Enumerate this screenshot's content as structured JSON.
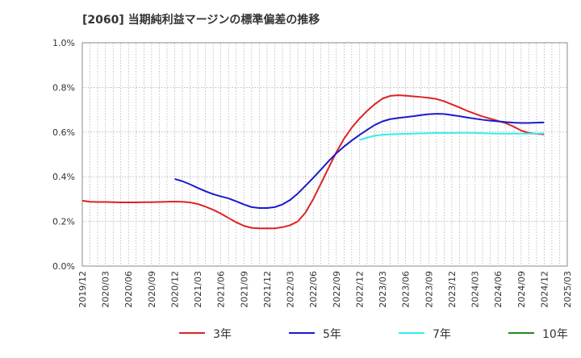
{
  "chart_data": {
    "type": "line",
    "title": "[2060]  当期純利益マージンの標準偏差の推移",
    "xlabel": "",
    "ylabel": "",
    "ylim": [
      0,
      1.0
    ],
    "y_ticks": [
      "0.0%",
      "0.2%",
      "0.4%",
      "0.6%",
      "0.8%",
      "1.0%"
    ],
    "y_tick_values": [
      0,
      0.2,
      0.4,
      0.6,
      0.8,
      1.0
    ],
    "x_start": "2019/12",
    "x_tick_labels": [
      "2019/12",
      "2020/03",
      "2020/06",
      "2020/09",
      "2020/12",
      "2021/03",
      "2021/06",
      "2021/09",
      "2021/12",
      "2022/03",
      "2022/06",
      "2022/09",
      "2022/12",
      "2023/03",
      "2023/06",
      "2023/09",
      "2023/12",
      "2024/03",
      "2024/06",
      "2024/09",
      "2024/12",
      "2025/03"
    ],
    "grid": true,
    "legend_position": "bottom",
    "series": [
      {
        "name": "3年",
        "color": "#dd2222",
        "x": [
          "2019/12",
          "2020/01",
          "2020/02",
          "2020/03",
          "2020/04",
          "2020/05",
          "2020/06",
          "2020/07",
          "2020/08",
          "2020/09",
          "2020/10",
          "2020/11",
          "2020/12",
          "2021/01",
          "2021/02",
          "2021/03",
          "2021/04",
          "2021/05",
          "2021/06",
          "2021/07",
          "2021/08",
          "2021/09",
          "2021/10",
          "2021/11",
          "2021/12",
          "2022/01",
          "2022/02",
          "2022/03",
          "2022/04",
          "2022/05",
          "2022/06",
          "2022/07",
          "2022/08",
          "2022/09",
          "2022/10",
          "2022/11",
          "2022/12",
          "2023/01",
          "2023/02",
          "2023/03",
          "2023/04",
          "2023/05",
          "2023/06",
          "2023/07",
          "2023/08",
          "2023/09",
          "2023/10",
          "2023/11",
          "2023/12",
          "2024/01",
          "2024/02",
          "2024/03",
          "2024/04",
          "2024/05",
          "2024/06",
          "2024/07",
          "2024/08",
          "2024/09",
          "2024/10",
          "2024/11",
          "2024/12"
        ],
        "values": [
          0.293,
          0.288,
          0.287,
          0.287,
          0.286,
          0.285,
          0.285,
          0.285,
          0.286,
          0.286,
          0.287,
          0.288,
          0.289,
          0.288,
          0.285,
          0.278,
          0.266,
          0.252,
          0.235,
          0.215,
          0.196,
          0.18,
          0.171,
          0.169,
          0.169,
          0.169,
          0.174,
          0.183,
          0.2,
          0.24,
          0.3,
          0.37,
          0.44,
          0.51,
          0.57,
          0.62,
          0.66,
          0.695,
          0.725,
          0.75,
          0.762,
          0.765,
          0.763,
          0.76,
          0.757,
          0.753,
          0.748,
          0.738,
          0.724,
          0.71,
          0.695,
          0.682,
          0.67,
          0.66,
          0.65,
          0.64,
          0.625,
          0.607,
          0.596,
          0.592,
          0.59
        ]
      },
      {
        "name": "5年",
        "color": "#1a1acc",
        "x": [
          "2020/12",
          "2021/01",
          "2021/02",
          "2021/03",
          "2021/04",
          "2021/05",
          "2021/06",
          "2021/07",
          "2021/08",
          "2021/09",
          "2021/10",
          "2021/11",
          "2021/12",
          "2022/01",
          "2022/02",
          "2022/03",
          "2022/04",
          "2022/05",
          "2022/06",
          "2022/07",
          "2022/08",
          "2022/09",
          "2022/10",
          "2022/11",
          "2022/12",
          "2023/01",
          "2023/02",
          "2023/03",
          "2023/04",
          "2023/05",
          "2023/06",
          "2023/07",
          "2023/08",
          "2023/09",
          "2023/10",
          "2023/11",
          "2023/12",
          "2024/01",
          "2024/02",
          "2024/03",
          "2024/04",
          "2024/05",
          "2024/06",
          "2024/07",
          "2024/08",
          "2024/09",
          "2024/10",
          "2024/11",
          "2024/12"
        ],
        "values": [
          0.39,
          0.38,
          0.366,
          0.35,
          0.335,
          0.322,
          0.312,
          0.303,
          0.29,
          0.276,
          0.264,
          0.26,
          0.26,
          0.264,
          0.276,
          0.296,
          0.325,
          0.36,
          0.395,
          0.432,
          0.47,
          0.505,
          0.535,
          0.562,
          0.587,
          0.61,
          0.632,
          0.648,
          0.658,
          0.663,
          0.667,
          0.671,
          0.676,
          0.68,
          0.682,
          0.681,
          0.676,
          0.671,
          0.665,
          0.66,
          0.655,
          0.651,
          0.648,
          0.645,
          0.642,
          0.641,
          0.641,
          0.642,
          0.643
        ]
      },
      {
        "name": "7年",
        "color": "#33eeee",
        "x": [
          "2022/12",
          "2023/01",
          "2023/02",
          "2023/03",
          "2023/04",
          "2023/05",
          "2023/06",
          "2023/07",
          "2023/08",
          "2023/09",
          "2023/10",
          "2023/11",
          "2023/12",
          "2024/01",
          "2024/02",
          "2024/03",
          "2024/04",
          "2024/05",
          "2024/06",
          "2024/07",
          "2024/08",
          "2024/09",
          "2024/10",
          "2024/11",
          "2024/12"
        ],
        "values": [
          0.565,
          0.575,
          0.584,
          0.588,
          0.59,
          0.591,
          0.592,
          0.593,
          0.594,
          0.595,
          0.596,
          0.596,
          0.596,
          0.597,
          0.597,
          0.596,
          0.595,
          0.594,
          0.593,
          0.593,
          0.593,
          0.593,
          0.593,
          0.593,
          0.594
        ]
      },
      {
        "name": "10年",
        "color": "#228822",
        "x": [],
        "values": []
      }
    ]
  }
}
